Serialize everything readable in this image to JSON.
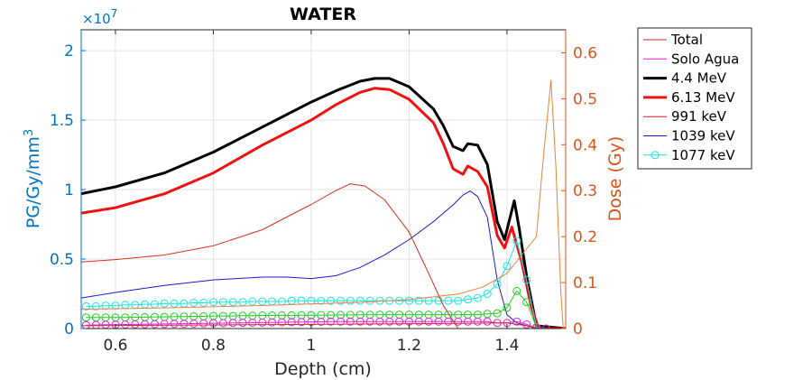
{
  "chart_data": {
    "type": "line",
    "title": "WATER",
    "xlabel": "Depth (cm)",
    "ylabel_left": "PG/Gy/mm",
    "ylabel_left_sup": "3",
    "ylabel_right": "Dose (Gy)",
    "left_multiplier_base": "×10",
    "left_multiplier_exp": "7",
    "xlim": [
      0.53,
      1.52
    ],
    "ylim_left": [
      0,
      2.15
    ],
    "ylim_right": [
      0,
      0.65
    ],
    "x_ticks": [
      0.6,
      0.8,
      1.0,
      1.2,
      1.4
    ],
    "x_tick_labels": [
      "0.6",
      "0.8",
      "1",
      "1.2",
      "1.4"
    ],
    "y_left_ticks": [
      0,
      0.5,
      1.0,
      1.5,
      2.0
    ],
    "y_left_tick_labels": [
      "0",
      "0.5",
      "1",
      "1.5",
      "2"
    ],
    "y_right_ticks": [
      0,
      0.1,
      0.2,
      0.3,
      0.4,
      0.5,
      0.6
    ],
    "y_right_tick_labels": [
      "0",
      "0.1",
      "0.2",
      "0.3",
      "0.4",
      "0.5",
      "0.6"
    ],
    "grid": true,
    "legend_position": "outside-top-right",
    "colors": {
      "left_axis": "#0072BD",
      "right_axis": "#D95319",
      "grid": "#dfe3e7"
    },
    "legend": [
      {
        "label": "Total",
        "color": "#D62F1F",
        "width": 1,
        "marker": "none"
      },
      {
        "label": "Solo Agua",
        "color": "#E01FE0",
        "width": 1,
        "marker": "none"
      },
      {
        "label": "4.4 MeV",
        "color": "#000000",
        "width": 3,
        "marker": "none"
      },
      {
        "label": "6.13 MeV",
        "color": "#EE1111",
        "width": 3,
        "marker": "none"
      },
      {
        "label": "991 keV",
        "color": "#E11B1B",
        "width": 1,
        "marker": "none"
      },
      {
        "label": "1039 keV",
        "color": "#1A1ACC",
        "width": 1,
        "marker": "none"
      },
      {
        "label": "1077 keV",
        "color": "#18E4E4",
        "width": 1,
        "marker": "circle"
      }
    ],
    "series": [
      {
        "axis": "left",
        "color": "#000000",
        "width": 3,
        "marker": "none",
        "points": [
          [
            0.53,
            0.97
          ],
          [
            0.6,
            1.02
          ],
          [
            0.7,
            1.12
          ],
          [
            0.8,
            1.27
          ],
          [
            0.9,
            1.45
          ],
          [
            1.0,
            1.63
          ],
          [
            1.05,
            1.71
          ],
          [
            1.1,
            1.78
          ],
          [
            1.13,
            1.8
          ],
          [
            1.16,
            1.8
          ],
          [
            1.2,
            1.74
          ],
          [
            1.25,
            1.58
          ],
          [
            1.27,
            1.46
          ],
          [
            1.29,
            1.31
          ],
          [
            1.31,
            1.28
          ],
          [
            1.32,
            1.33
          ],
          [
            1.34,
            1.32
          ],
          [
            1.36,
            1.18
          ],
          [
            1.38,
            0.77
          ],
          [
            1.395,
            0.64
          ],
          [
            1.415,
            0.92
          ],
          [
            1.425,
            0.72
          ],
          [
            1.44,
            0.38
          ],
          [
            1.46,
            0.02
          ],
          [
            1.52,
            0
          ]
        ]
      },
      {
        "axis": "left",
        "color": "#EE1111",
        "width": 3,
        "marker": "none",
        "points": [
          [
            0.53,
            0.83
          ],
          [
            0.6,
            0.87
          ],
          [
            0.7,
            0.97
          ],
          [
            0.8,
            1.12
          ],
          [
            0.9,
            1.32
          ],
          [
            1.0,
            1.5
          ],
          [
            1.05,
            1.61
          ],
          [
            1.1,
            1.7
          ],
          [
            1.13,
            1.73
          ],
          [
            1.16,
            1.72
          ],
          [
            1.2,
            1.65
          ],
          [
            1.25,
            1.48
          ],
          [
            1.27,
            1.33
          ],
          [
            1.29,
            1.15
          ],
          [
            1.31,
            1.11
          ],
          [
            1.32,
            1.17
          ],
          [
            1.34,
            1.13
          ],
          [
            1.36,
            1.02
          ],
          [
            1.38,
            0.67
          ],
          [
            1.395,
            0.58
          ],
          [
            1.41,
            0.73
          ],
          [
            1.43,
            0.48
          ],
          [
            1.45,
            0.15
          ],
          [
            1.465,
            0.0
          ],
          [
            1.52,
            0
          ]
        ]
      },
      {
        "axis": "left",
        "color": "#1A1ACC",
        "width": 1,
        "marker": "none",
        "points": [
          [
            0.53,
            0.22
          ],
          [
            0.6,
            0.26
          ],
          [
            0.7,
            0.31
          ],
          [
            0.8,
            0.35
          ],
          [
            0.9,
            0.37
          ],
          [
            0.95,
            0.37
          ],
          [
            1.0,
            0.36
          ],
          [
            1.05,
            0.38
          ],
          [
            1.1,
            0.44
          ],
          [
            1.15,
            0.53
          ],
          [
            1.2,
            0.64
          ],
          [
            1.25,
            0.77
          ],
          [
            1.29,
            0.89
          ],
          [
            1.31,
            0.96
          ],
          [
            1.325,
            0.99
          ],
          [
            1.34,
            0.95
          ],
          [
            1.36,
            0.8
          ],
          [
            1.38,
            0.35
          ],
          [
            1.4,
            0.1
          ],
          [
            1.42,
            0.04
          ],
          [
            1.44,
            0.02
          ],
          [
            1.46,
            0.0
          ],
          [
            1.52,
            0
          ]
        ]
      },
      {
        "axis": "left",
        "color": "#18E4E4",
        "width": 1,
        "marker": "circle",
        "points": [
          [
            0.54,
            0.16
          ],
          [
            0.56,
            0.16
          ],
          [
            0.58,
            0.165
          ],
          [
            0.6,
            0.165
          ],
          [
            0.62,
            0.17
          ],
          [
            0.64,
            0.17
          ],
          [
            0.66,
            0.175
          ],
          [
            0.68,
            0.175
          ],
          [
            0.7,
            0.18
          ],
          [
            0.72,
            0.18
          ],
          [
            0.74,
            0.18
          ],
          [
            0.76,
            0.185
          ],
          [
            0.78,
            0.185
          ],
          [
            0.8,
            0.19
          ],
          [
            0.82,
            0.19
          ],
          [
            0.84,
            0.19
          ],
          [
            0.86,
            0.19
          ],
          [
            0.88,
            0.195
          ],
          [
            0.9,
            0.195
          ],
          [
            0.92,
            0.195
          ],
          [
            0.94,
            0.195
          ],
          [
            0.96,
            0.2
          ],
          [
            0.98,
            0.2
          ],
          [
            1.0,
            0.2
          ],
          [
            1.02,
            0.2
          ],
          [
            1.04,
            0.2
          ],
          [
            1.06,
            0.2
          ],
          [
            1.08,
            0.2
          ],
          [
            1.1,
            0.2
          ],
          [
            1.12,
            0.2
          ],
          [
            1.14,
            0.2
          ],
          [
            1.16,
            0.2
          ],
          [
            1.18,
            0.2
          ],
          [
            1.2,
            0.2
          ],
          [
            1.22,
            0.2
          ],
          [
            1.24,
            0.2
          ],
          [
            1.26,
            0.2
          ],
          [
            1.28,
            0.2
          ],
          [
            1.3,
            0.2
          ],
          [
            1.32,
            0.21
          ],
          [
            1.34,
            0.22
          ],
          [
            1.36,
            0.25
          ],
          [
            1.38,
            0.32
          ],
          [
            1.4,
            0.45
          ],
          [
            1.42,
            0.63
          ],
          [
            1.44,
            0.35
          ],
          [
            1.46,
            0.01
          ],
          [
            1.48,
            0.0
          ]
        ]
      },
      {
        "axis": "left",
        "color": "#22CC22",
        "width": 1,
        "marker": "circle",
        "points": [
          [
            0.54,
            0.08
          ],
          [
            0.56,
            0.08
          ],
          [
            0.58,
            0.08
          ],
          [
            0.6,
            0.08
          ],
          [
            0.62,
            0.08
          ],
          [
            0.64,
            0.082
          ],
          [
            0.66,
            0.082
          ],
          [
            0.68,
            0.084
          ],
          [
            0.7,
            0.084
          ],
          [
            0.72,
            0.086
          ],
          [
            0.74,
            0.086
          ],
          [
            0.76,
            0.088
          ],
          [
            0.78,
            0.088
          ],
          [
            0.8,
            0.09
          ],
          [
            0.82,
            0.09
          ],
          [
            0.84,
            0.09
          ],
          [
            0.86,
            0.092
          ],
          [
            0.88,
            0.092
          ],
          [
            0.9,
            0.094
          ],
          [
            0.92,
            0.094
          ],
          [
            0.94,
            0.095
          ],
          [
            0.96,
            0.095
          ],
          [
            0.98,
            0.096
          ],
          [
            1.0,
            0.096
          ],
          [
            1.02,
            0.097
          ],
          [
            1.04,
            0.097
          ],
          [
            1.06,
            0.098
          ],
          [
            1.08,
            0.098
          ],
          [
            1.1,
            0.099
          ],
          [
            1.12,
            0.099
          ],
          [
            1.14,
            0.1
          ],
          [
            1.16,
            0.1
          ],
          [
            1.18,
            0.1
          ],
          [
            1.2,
            0.1
          ],
          [
            1.22,
            0.1
          ],
          [
            1.24,
            0.1
          ],
          [
            1.26,
            0.1
          ],
          [
            1.28,
            0.1
          ],
          [
            1.3,
            0.1
          ],
          [
            1.32,
            0.1
          ],
          [
            1.34,
            0.1
          ],
          [
            1.36,
            0.105
          ],
          [
            1.38,
            0.11
          ],
          [
            1.4,
            0.15
          ],
          [
            1.42,
            0.27
          ],
          [
            1.44,
            0.19
          ],
          [
            1.46,
            0.01
          ],
          [
            1.48,
            0.0
          ]
        ]
      },
      {
        "axis": "left",
        "color": "#E01FE0",
        "width": 1,
        "marker": "circle",
        "points": [
          [
            0.54,
            0.025
          ],
          [
            0.56,
            0.026
          ],
          [
            0.58,
            0.027
          ],
          [
            0.6,
            0.028
          ],
          [
            0.62,
            0.029
          ],
          [
            0.64,
            0.03
          ],
          [
            0.66,
            0.031
          ],
          [
            0.68,
            0.032
          ],
          [
            0.7,
            0.033
          ],
          [
            0.72,
            0.034
          ],
          [
            0.74,
            0.035
          ],
          [
            0.76,
            0.036
          ],
          [
            0.78,
            0.037
          ],
          [
            0.8,
            0.038
          ],
          [
            0.82,
            0.039
          ],
          [
            0.84,
            0.04
          ],
          [
            0.86,
            0.041
          ],
          [
            0.88,
            0.042
          ],
          [
            0.9,
            0.043
          ],
          [
            0.92,
            0.044
          ],
          [
            0.94,
            0.045
          ],
          [
            0.96,
            0.046
          ],
          [
            0.98,
            0.047
          ],
          [
            1.0,
            0.048
          ],
          [
            1.02,
            0.049
          ],
          [
            1.04,
            0.05
          ],
          [
            1.06,
            0.05
          ],
          [
            1.08,
            0.05
          ],
          [
            1.1,
            0.05
          ],
          [
            1.12,
            0.05
          ],
          [
            1.14,
            0.05
          ],
          [
            1.16,
            0.05
          ],
          [
            1.18,
            0.05
          ],
          [
            1.2,
            0.05
          ],
          [
            1.22,
            0.05
          ],
          [
            1.24,
            0.05
          ],
          [
            1.26,
            0.05
          ],
          [
            1.28,
            0.05
          ],
          [
            1.3,
            0.05
          ],
          [
            1.32,
            0.05
          ],
          [
            1.34,
            0.05
          ],
          [
            1.36,
            0.05
          ],
          [
            1.38,
            0.04
          ],
          [
            1.4,
            0.04
          ],
          [
            1.42,
            0.05
          ],
          [
            1.44,
            0.03
          ],
          [
            1.46,
            0.005
          ],
          [
            1.48,
            0.0
          ]
        ]
      },
      {
        "axis": "left",
        "color": "#D62F1F",
        "width": 1,
        "marker": "none",
        "points": [
          [
            0.53,
            0.02
          ],
          [
            1.0,
            0.03
          ],
          [
            1.4,
            0.04
          ],
          [
            1.44,
            0.02
          ],
          [
            1.46,
            0.0
          ],
          [
            1.52,
            0
          ]
        ]
      },
      {
        "axis": "right",
        "color": "#D62F1F",
        "width": 1,
        "marker": "none",
        "points": [
          [
            0.53,
            0.145
          ],
          [
            0.6,
            0.15
          ],
          [
            0.7,
            0.16
          ],
          [
            0.8,
            0.18
          ],
          [
            0.9,
            0.215
          ],
          [
            1.0,
            0.27
          ],
          [
            1.05,
            0.3
          ],
          [
            1.08,
            0.315
          ],
          [
            1.11,
            0.31
          ],
          [
            1.15,
            0.28
          ],
          [
            1.2,
            0.21
          ],
          [
            1.24,
            0.12
          ],
          [
            1.27,
            0.05
          ],
          [
            1.3,
            0.0
          ],
          [
            1.52,
            0
          ]
        ]
      },
      {
        "axis": "right",
        "color": "#E8833A",
        "width": 1,
        "marker": "none",
        "points": [
          [
            0.53,
            0.042
          ],
          [
            0.7,
            0.045
          ],
          [
            0.9,
            0.05
          ],
          [
            1.1,
            0.057
          ],
          [
            1.2,
            0.063
          ],
          [
            1.3,
            0.075
          ],
          [
            1.35,
            0.09
          ],
          [
            1.4,
            0.12
          ],
          [
            1.43,
            0.16
          ],
          [
            1.46,
            0.2
          ],
          [
            1.475,
            0.38
          ],
          [
            1.49,
            0.54
          ],
          [
            1.5,
            0.35
          ],
          [
            1.51,
            0.08
          ],
          [
            1.515,
            0.0
          ],
          [
            1.52,
            0
          ]
        ]
      }
    ]
  }
}
